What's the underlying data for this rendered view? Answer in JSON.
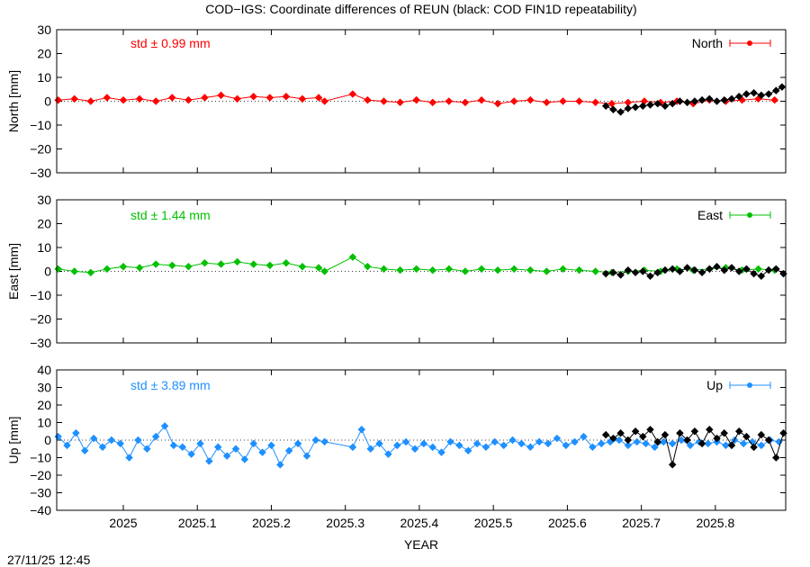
{
  "title": "COD−IGS: Coordinate differences of REUN (black: COD FIN1D repeatability)",
  "timestamp": "27/11/25 12:45",
  "chart_data": [
    {
      "type": "scatter",
      "panel": "north",
      "ylabel": "North [mm]",
      "ylim": [
        -30,
        30
      ],
      "yticks": [
        30,
        20,
        10,
        0,
        -10,
        -20,
        -30
      ],
      "ytick_labels": [
        "30",
        "20",
        "10",
        "0",
        "−10",
        "−20",
        "−30"
      ],
      "legend": "North",
      "std_label": "std ± 0.99 mm",
      "color": "#ff0000",
      "series": [
        {
          "name": "North",
          "color": "#ff0000",
          "x": [
            2024.912,
            2024.934,
            2024.956,
            2024.978,
            2025.0,
            2025.022,
            2025.044,
            2025.066,
            2025.088,
            2025.11,
            2025.132,
            2025.154,
            2025.176,
            2025.198,
            2025.22,
            2025.242,
            2025.264,
            2025.272,
            2025.31,
            2025.33,
            2025.352,
            2025.374,
            2025.396,
            2025.418,
            2025.44,
            2025.462,
            2025.484,
            2025.506,
            2025.528,
            2025.55,
            2025.572,
            2025.594,
            2025.616,
            2025.638,
            2025.66,
            2025.682,
            2025.704,
            2025.726,
            2025.748,
            2025.77,
            2025.792,
            2025.814,
            2025.836,
            2025.858,
            2025.88
          ],
          "y": [
            0.5,
            1.0,
            0.0,
            1.5,
            0.5,
            1.0,
            0.0,
            1.5,
            0.5,
            1.5,
            2.5,
            1.0,
            2.0,
            1.5,
            2.0,
            1.0,
            1.5,
            0.0,
            3.0,
            0.5,
            0.0,
            -0.5,
            0.5,
            -0.5,
            0.0,
            -0.5,
            0.5,
            -1.0,
            0.0,
            0.5,
            -0.5,
            0.0,
            0.0,
            -0.5,
            -1.0,
            -0.5,
            0.0,
            -0.5,
            0.0,
            -1.0,
            0.5,
            0.0,
            0.5,
            1.0,
            0.5
          ]
        },
        {
          "name": "COD FIN1D repeatability",
          "color": "#000000",
          "x": [
            2025.652,
            2025.662,
            2025.672,
            2025.682,
            2025.692,
            2025.702,
            2025.712,
            2025.722,
            2025.732,
            2025.742,
            2025.752,
            2025.762,
            2025.772,
            2025.782,
            2025.792,
            2025.802,
            2025.812,
            2025.822,
            2025.832,
            2025.842,
            2025.852,
            2025.862,
            2025.872,
            2025.882,
            2025.89
          ],
          "y": [
            -2.0,
            -3.5,
            -4.5,
            -3.0,
            -2.5,
            -2.0,
            -1.5,
            -1.0,
            -2.0,
            -1.0,
            0.0,
            -0.5,
            0.0,
            0.5,
            1.0,
            0.0,
            0.5,
            1.0,
            2.0,
            3.0,
            3.5,
            2.5,
            3.0,
            4.5,
            6.0
          ]
        }
      ]
    },
    {
      "type": "scatter",
      "panel": "east",
      "ylabel": "East [mm]",
      "ylim": [
        -30,
        30
      ],
      "yticks": [
        30,
        20,
        10,
        0,
        -10,
        -20,
        -30
      ],
      "ytick_labels": [
        "30",
        "20",
        "10",
        "0",
        "−10",
        "−20",
        "−30"
      ],
      "legend": "East",
      "std_label": "std ± 1.44 mm",
      "color": "#00c000",
      "series": [
        {
          "name": "East",
          "color": "#00c000",
          "x": [
            2024.912,
            2024.934,
            2024.956,
            2024.978,
            2025.0,
            2025.022,
            2025.044,
            2025.066,
            2025.088,
            2025.11,
            2025.132,
            2025.154,
            2025.176,
            2025.198,
            2025.22,
            2025.242,
            2025.264,
            2025.272,
            2025.31,
            2025.33,
            2025.352,
            2025.374,
            2025.396,
            2025.418,
            2025.44,
            2025.462,
            2025.484,
            2025.506,
            2025.528,
            2025.55,
            2025.572,
            2025.594,
            2025.616,
            2025.638,
            2025.66,
            2025.682,
            2025.704,
            2025.726,
            2025.748,
            2025.77,
            2025.792,
            2025.814,
            2025.836,
            2025.858,
            2025.88
          ],
          "y": [
            1.0,
            0.0,
            -0.5,
            1.0,
            2.0,
            1.5,
            3.0,
            2.5,
            2.0,
            3.5,
            3.0,
            4.0,
            3.0,
            2.5,
            3.5,
            2.0,
            1.5,
            0.0,
            6.0,
            2.0,
            1.0,
            0.5,
            1.0,
            0.5,
            1.0,
            0.0,
            1.0,
            0.5,
            1.0,
            0.5,
            0.0,
            1.0,
            0.5,
            0.0,
            -0.5,
            0.0,
            0.5,
            0.0,
            1.0,
            0.5,
            1.0,
            1.5,
            0.5,
            1.0,
            0.5
          ]
        },
        {
          "name": "COD FIN1D repeatability",
          "color": "#000000",
          "x": [
            2025.652,
            2025.662,
            2025.672,
            2025.682,
            2025.692,
            2025.702,
            2025.712,
            2025.722,
            2025.732,
            2025.742,
            2025.752,
            2025.762,
            2025.772,
            2025.782,
            2025.792,
            2025.802,
            2025.812,
            2025.822,
            2025.832,
            2025.842,
            2025.852,
            2025.862,
            2025.872,
            2025.882,
            2025.892
          ],
          "y": [
            -1.0,
            -0.5,
            -1.5,
            0.5,
            -0.5,
            0.0,
            -2.0,
            -0.5,
            0.5,
            1.0,
            0.0,
            1.5,
            0.5,
            -0.5,
            1.0,
            2.0,
            0.5,
            1.5,
            0.0,
            1.0,
            -1.0,
            -2.0,
            0.5,
            1.0,
            -1.0
          ]
        }
      ]
    },
    {
      "type": "scatter",
      "panel": "up",
      "ylabel": "Up [mm]",
      "ylim": [
        -40,
        40
      ],
      "yticks": [
        40,
        30,
        20,
        10,
        0,
        -10,
        -20,
        -30,
        -40
      ],
      "ytick_labels": [
        "40",
        "30",
        "20",
        "10",
        "0",
        "−10",
        "−20",
        "−30",
        "−40"
      ],
      "legend": "Up",
      "std_label": "std ± 3.89 mm",
      "color": "#1e90ff",
      "xlabel": "YEAR",
      "xlim": [
        2024.91,
        2025.895
      ],
      "xticks": [
        2025,
        2025.1,
        2025.2,
        2025.3,
        2025.4,
        2025.5,
        2025.6,
        2025.7,
        2025.8
      ],
      "xtick_labels": [
        "2025",
        "2025.1",
        "2025.2",
        "2025.3",
        "2025.4",
        "2025.5",
        "2025.6",
        "2025.7",
        "2025.8"
      ],
      "series": [
        {
          "name": "Up",
          "color": "#1e90ff",
          "x": [
            2024.912,
            2024.924,
            2024.936,
            2024.948,
            2024.96,
            2024.972,
            2024.984,
            2024.996,
            2025.008,
            2025.02,
            2025.032,
            2025.044,
            2025.056,
            2025.068,
            2025.08,
            2025.092,
            2025.104,
            2025.116,
            2025.128,
            2025.14,
            2025.152,
            2025.164,
            2025.176,
            2025.188,
            2025.2,
            2025.212,
            2025.224,
            2025.236,
            2025.248,
            2025.26,
            2025.272,
            2025.31,
            2025.322,
            2025.334,
            2025.346,
            2025.358,
            2025.37,
            2025.382,
            2025.394,
            2025.406,
            2025.418,
            2025.43,
            2025.442,
            2025.454,
            2025.466,
            2025.478,
            2025.49,
            2025.502,
            2025.514,
            2025.526,
            2025.538,
            2025.55,
            2025.562,
            2025.574,
            2025.586,
            2025.598,
            2025.61,
            2025.622,
            2025.634,
            2025.646,
            2025.658,
            2025.67,
            2025.682,
            2025.694,
            2025.706,
            2025.718,
            2025.73,
            2025.742,
            2025.754,
            2025.766,
            2025.778,
            2025.79,
            2025.802,
            2025.814,
            2025.826,
            2025.838,
            2025.85,
            2025.862,
            2025.874,
            2025.886
          ],
          "y": [
            2,
            -3,
            4,
            -6,
            1,
            -4,
            0,
            -2,
            -10,
            0,
            -5,
            2,
            8,
            -3,
            -4,
            -8,
            -2,
            -12,
            -4,
            -9,
            -5,
            -11,
            -2,
            -7,
            -3,
            -14,
            -6,
            -2,
            -9,
            0,
            -1,
            -4,
            6,
            -5,
            -2,
            -8,
            -3,
            -1,
            -5,
            -2,
            -4,
            -7,
            -1,
            -3,
            -6,
            -2,
            -4,
            -1,
            -3,
            0,
            -2,
            -4,
            -1,
            -2,
            1,
            -3,
            -1,
            2,
            -4,
            -2,
            -1,
            0,
            -3,
            -1,
            -2,
            -4,
            -1,
            -2,
            0,
            -3,
            -1,
            -2,
            -1,
            -3,
            0,
            -2,
            -1,
            -3,
            0,
            -1
          ]
        },
        {
          "name": "COD FIN1D repeatability",
          "color": "#000000",
          "x": [
            2025.652,
            2025.662,
            2025.672,
            2025.682,
            2025.692,
            2025.702,
            2025.712,
            2025.722,
            2025.732,
            2025.742,
            2025.752,
            2025.762,
            2025.772,
            2025.782,
            2025.792,
            2025.802,
            2025.812,
            2025.822,
            2025.832,
            2025.842,
            2025.852,
            2025.862,
            2025.872,
            2025.882,
            2025.892
          ],
          "y": [
            3,
            1,
            4,
            0,
            5,
            2,
            6,
            -1,
            3,
            -14,
            4,
            0,
            5,
            -2,
            6,
            1,
            4,
            -3,
            5,
            2,
            -4,
            3,
            0,
            -10,
            4
          ]
        }
      ]
    }
  ]
}
